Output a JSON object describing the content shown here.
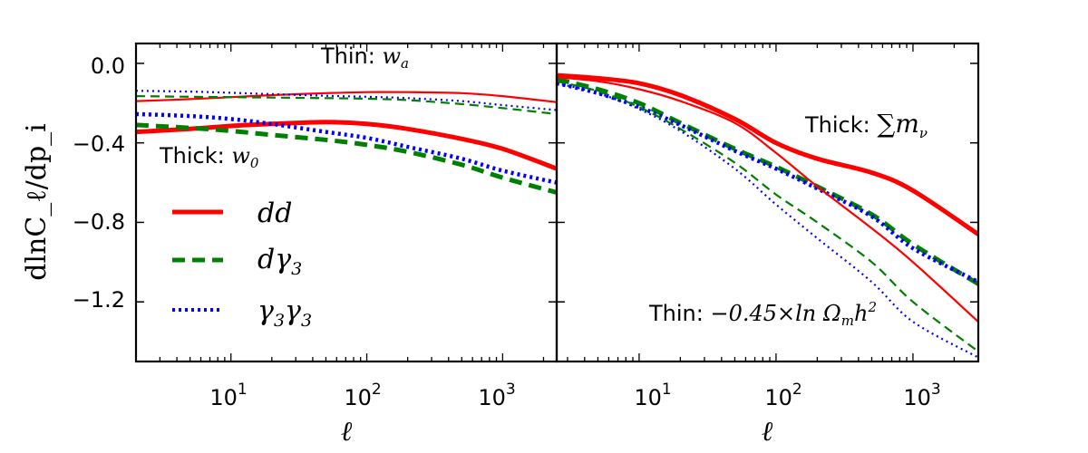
{
  "chart_data": {
    "type": "line",
    "ylabel": "dlnC_ℓ/dp_i",
    "ylim": [
      -1.5,
      0.1
    ],
    "yticks": [
      "0.0",
      "−0.4",
      "−0.8",
      "−1.2"
    ],
    "ytick_values": [
      0.0,
      -0.4,
      -0.8,
      -1.2
    ],
    "xscale": "log",
    "xtick_labels": [
      "10",
      "10",
      "10"
    ],
    "xtick_exponents": [
      "1",
      "2",
      "3"
    ],
    "legend": [
      {
        "name": "dd",
        "color": "#ff0000",
        "style": "solid"
      },
      {
        "name": "dγ",
        "sub": "3",
        "color": "#008000",
        "style": "dashed"
      },
      {
        "name": "γ",
        "sub": "3",
        "name2": "γ",
        "sub2": "3",
        "color": "#0000ff",
        "style": "dotted"
      }
    ],
    "panels": [
      {
        "xlabel": "ℓ",
        "xlim": [
          2,
          2500
        ],
        "annotations": [
          {
            "prefix": "Thin: ",
            "math": "w",
            "sub": "a"
          },
          {
            "prefix": "Thick: ",
            "math": "w",
            "sub": "0"
          }
        ],
        "series": [
          {
            "name": "dd thick (w0)",
            "color": "#ff0000",
            "style": "solid",
            "thick": true,
            "x": [
              2,
              5,
              10,
              20,
              50,
              100,
              200,
              500,
              1000,
              2500
            ],
            "y": [
              -0.345,
              -0.33,
              -0.315,
              -0.305,
              -0.295,
              -0.305,
              -0.33,
              -0.38,
              -0.43,
              -0.53
            ]
          },
          {
            "name": "dγ3 thick (w0)",
            "color": "#008000",
            "style": "dashed",
            "thick": true,
            "x": [
              2,
              5,
              10,
              20,
              50,
              100,
              200,
              500,
              1000,
              2500
            ],
            "y": [
              -0.31,
              -0.325,
              -0.34,
              -0.36,
              -0.385,
              -0.41,
              -0.445,
              -0.51,
              -0.575,
              -0.65
            ]
          },
          {
            "name": "γ3γ3 thick (w0)",
            "color": "#0000ff",
            "style": "dotted",
            "thick": true,
            "x": [
              2,
              5,
              10,
              20,
              50,
              100,
              200,
              500,
              1000,
              2500
            ],
            "y": [
              -0.255,
              -0.265,
              -0.28,
              -0.305,
              -0.345,
              -0.375,
              -0.42,
              -0.48,
              -0.54,
              -0.6
            ]
          },
          {
            "name": "dd thin (wa)",
            "color": "#ff0000",
            "style": "solid",
            "thick": false,
            "x": [
              2,
              5,
              10,
              20,
              50,
              100,
              200,
              500,
              1000,
              2500
            ],
            "y": [
              -0.19,
              -0.18,
              -0.17,
              -0.16,
              -0.15,
              -0.145,
              -0.145,
              -0.15,
              -0.165,
              -0.195
            ]
          },
          {
            "name": "dγ3 thin (wa)",
            "color": "#008000",
            "style": "dashed",
            "thick": false,
            "x": [
              2,
              5,
              10,
              20,
              50,
              100,
              200,
              500,
              1000,
              2500
            ],
            "y": [
              -0.165,
              -0.168,
              -0.17,
              -0.172,
              -0.175,
              -0.178,
              -0.185,
              -0.205,
              -0.225,
              -0.255
            ]
          },
          {
            "name": "γ3γ3 thin (wa)",
            "color": "#0000ff",
            "style": "dotted",
            "thick": false,
            "x": [
              2,
              5,
              10,
              20,
              50,
              100,
              200,
              500,
              1000,
              2500
            ],
            "y": [
              -0.138,
              -0.142,
              -0.148,
              -0.155,
              -0.163,
              -0.168,
              -0.175,
              -0.19,
              -0.21,
              -0.235
            ]
          }
        ]
      },
      {
        "xlabel": "ℓ",
        "xlim": [
          2.5,
          3000
        ],
        "annotations": [
          {
            "prefix": "Thick: ",
            "math": "∑m",
            "sub": "ν"
          },
          {
            "prefix": "Thin: ",
            "math": "−0.45×ln Ω",
            "sub": "m",
            "suffix": "h",
            "sup": "2"
          }
        ],
        "series": [
          {
            "name": "dd thick (sum m_nu)",
            "color": "#ff0000",
            "style": "solid",
            "thick": true,
            "x": [
              2.5,
              5,
              10,
              20,
              50,
              100,
              200,
              500,
              1000,
              3000
            ],
            "y": [
              -0.06,
              -0.075,
              -0.1,
              -0.16,
              -0.28,
              -0.4,
              -0.48,
              -0.55,
              -0.64,
              -0.86
            ]
          },
          {
            "name": "dγ3 thick (sum m_nu)",
            "color": "#008000",
            "style": "dashed",
            "thick": true,
            "x": [
              2.5,
              5,
              10,
              20,
              50,
              100,
              200,
              500,
              1000,
              3000
            ],
            "y": [
              -0.08,
              -0.13,
              -0.2,
              -0.3,
              -0.43,
              -0.52,
              -0.62,
              -0.76,
              -0.91,
              -1.11
            ]
          },
          {
            "name": "γ3γ3 thick (sum m_nu)",
            "color": "#0000ff",
            "style": "dotted",
            "thick": true,
            "x": [
              2.5,
              5,
              10,
              20,
              50,
              100,
              200,
              500,
              1000,
              3000
            ],
            "y": [
              -0.1,
              -0.15,
              -0.22,
              -0.31,
              -0.44,
              -0.53,
              -0.63,
              -0.77,
              -0.93,
              -1.1
            ]
          },
          {
            "name": "dd thin (Omega_m h^2)",
            "color": "#ff0000",
            "style": "solid",
            "thick": false,
            "x": [
              2.5,
              5,
              10,
              20,
              50,
              100,
              200,
              500,
              1000,
              3000
            ],
            "y": [
              -0.07,
              -0.09,
              -0.13,
              -0.19,
              -0.3,
              -0.45,
              -0.62,
              -0.83,
              -1.0,
              -1.3
            ]
          },
          {
            "name": "dγ3 thin (Omega_m h^2)",
            "color": "#008000",
            "style": "dashed",
            "thick": false,
            "x": [
              2.5,
              5,
              10,
              20,
              50,
              100,
              200,
              500,
              1000,
              3000
            ],
            "y": [
              -0.09,
              -0.14,
              -0.22,
              -0.33,
              -0.5,
              -0.66,
              -0.8,
              -1.0,
              -1.2,
              -1.45
            ]
          },
          {
            "name": "γ3γ3 thin (Omega_m h^2)",
            "color": "#0000ff",
            "style": "dotted",
            "thick": false,
            "x": [
              2.5,
              5,
              10,
              20,
              50,
              100,
              200,
              500,
              1000,
              3000
            ],
            "y": [
              -0.1,
              -0.15,
              -0.23,
              -0.34,
              -0.53,
              -0.71,
              -0.88,
              -1.1,
              -1.3,
              -1.48
            ]
          }
        ]
      }
    ]
  }
}
